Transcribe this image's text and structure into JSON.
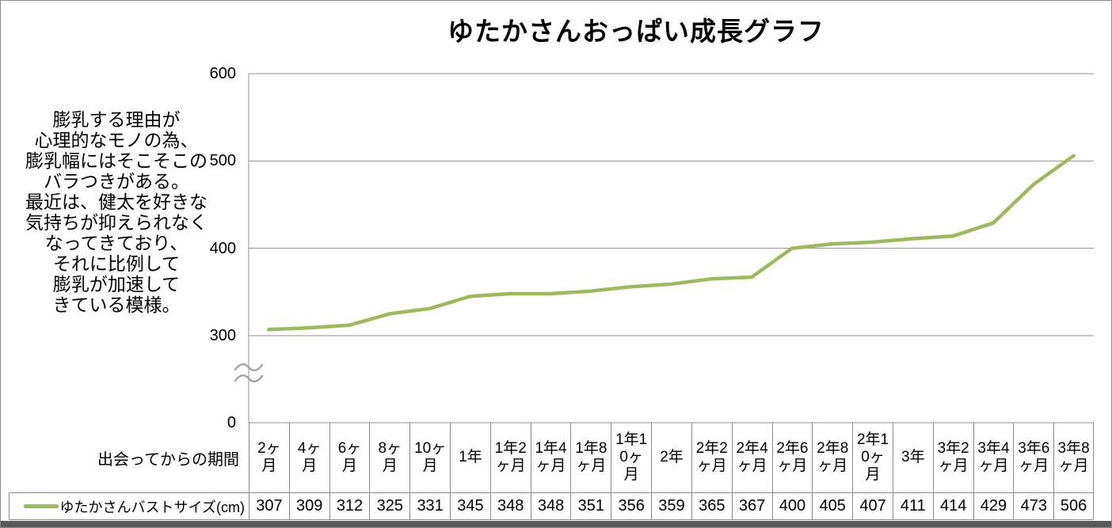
{
  "title": "ゆたかさんおっぱい成長グラフ",
  "annotation": {
    "text": "膨乳する理由が\n心理的なモノの為、\n膨乳幅にはそこそこの\nバラつきがある。\n最近は、健太を好きな\n気持ちが抑えられなく\nなってきており、\nそれに比例して\n膨乳が加速して\nきている模様。"
  },
  "colors": {
    "line": "#9bbb59",
    "grid": "#909090",
    "table_border": "#8c8c8c",
    "break_mark": "#a6a6a6",
    "bottom_bar": "#595959",
    "text": "#000000",
    "background": "#ffffff"
  },
  "chart_data": {
    "type": "line",
    "title": "ゆたかさんおっぱい成長グラフ",
    "x_axis_label": "出会ってからの期間",
    "categories": [
      "2ヶ月",
      "4ヶ月",
      "6ヶ月",
      "8ヶ月",
      "10ヶ月",
      "1年",
      "1年2ヶ月",
      "1年4ヶ月",
      "1年8ヶ月",
      "1年10ヶ月",
      "2年",
      "2年2ヶ月",
      "2年4ヶ月",
      "2年6ヶ月",
      "2年8ヶ月",
      "2年10ヶ月",
      "3年",
      "3年2ヶ月",
      "3年4ヶ月",
      "3年6ヶ月",
      "3年8ヶ月"
    ],
    "series": [
      {
        "name": "ゆたかさんバストサイズ(cm)",
        "values": [
          307,
          309,
          312,
          325,
          331,
          345,
          348,
          348,
          351,
          356,
          359,
          365,
          367,
          400,
          405,
          407,
          411,
          414,
          429,
          473,
          506
        ]
      }
    ],
    "y_ticks": [
      600,
      500,
      400,
      300,
      0
    ],
    "y_axis_break_between": [
      0,
      300
    ],
    "ylim": [
      0,
      600
    ],
    "grid": true,
    "legend_position": "bottom-table-row"
  }
}
